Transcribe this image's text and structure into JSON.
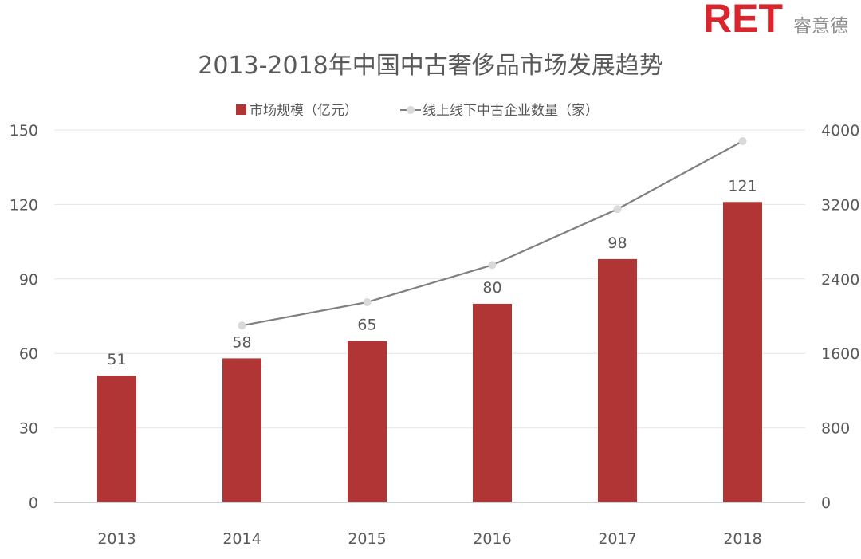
{
  "brand": {
    "logo_text": "RET",
    "logo_cn": "睿意德"
  },
  "chart_data": {
    "type": "bar",
    "title": "2013-2018年中国中古奢侈品市场发展趋势",
    "categories": [
      "2013",
      "2014",
      "2015",
      "2016",
      "2017",
      "2018"
    ],
    "series": [
      {
        "name": "市场规模（亿元）",
        "type": "bar",
        "axis": "left",
        "values": [
          51,
          58,
          65,
          80,
          98,
          121
        ],
        "color": "#b23535"
      },
      {
        "name": "线上线下中古企业数量（家）",
        "type": "line",
        "axis": "right",
        "values": [
          null,
          1900,
          2150,
          2550,
          3150,
          3880
        ],
        "color": "#808080",
        "marker_color": "#d9d9d9"
      }
    ],
    "y_left": {
      "min": 0,
      "max": 150,
      "ticks": [
        "0",
        "30",
        "60",
        "90",
        "120",
        "150"
      ]
    },
    "y_right": {
      "min": 0,
      "max": 4000,
      "ticks": [
        "0",
        "800",
        "1600",
        "2400",
        "3200",
        "4000"
      ]
    },
    "data_labels": [
      "51",
      "58",
      "65",
      "80",
      "98",
      "121"
    ],
    "legend_position": "top",
    "grid": true
  }
}
